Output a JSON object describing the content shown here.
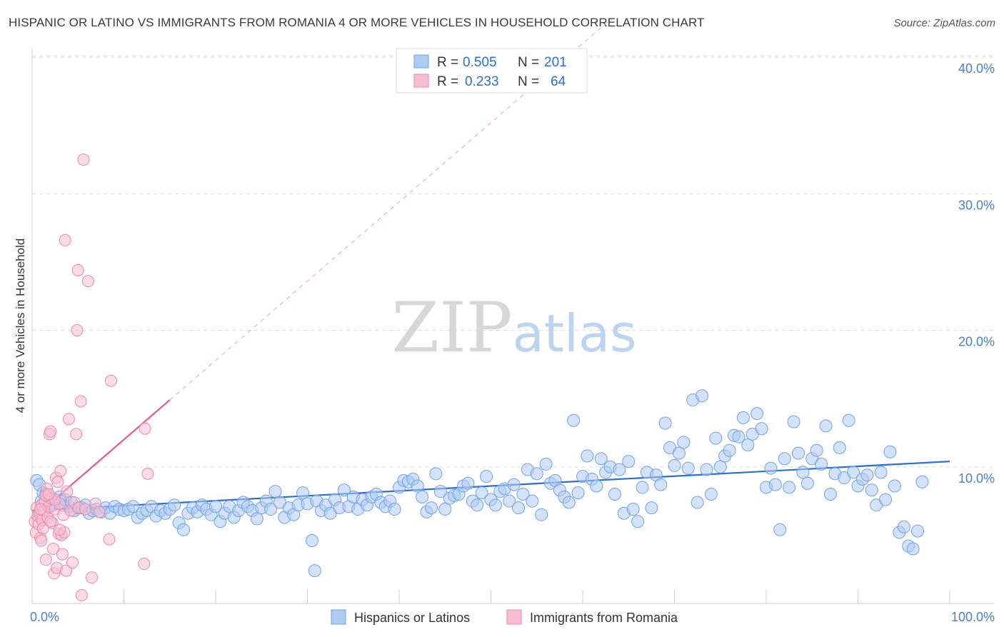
{
  "title": "HISPANIC OR LATINO VS IMMIGRANTS FROM ROMANIA 4 OR MORE VEHICLES IN HOUSEHOLD CORRELATION CHART",
  "source": "Source: ZipAtlas.com",
  "watermark": {
    "zip": "ZIP",
    "atlas": "atlas"
  },
  "chart_data": {
    "type": "scatter",
    "ylabel": "4 or more Vehicles in Household",
    "xlabel": "",
    "xlim": [
      0,
      100
    ],
    "ylim": [
      0,
      40
    ],
    "x_ticks": [
      {
        "value": 0,
        "label": "0.0%"
      },
      {
        "value": 100,
        "label": "100.0%"
      }
    ],
    "y_ticks": [
      {
        "value": 10,
        "label": "10.0%"
      },
      {
        "value": 20,
        "label": "20.0%"
      },
      {
        "value": 30,
        "label": "30.0%"
      },
      {
        "value": 40,
        "label": "40.0%"
      }
    ],
    "grid": "horizontal dashed",
    "legend_placement": "top-center",
    "stats": [
      {
        "r_label": "R =",
        "r_value": "0.505",
        "n_label": "N =",
        "n_value": "201"
      },
      {
        "r_label": "R =",
        "r_value": "0.233",
        "n_label": "N =",
        "n_value": "64"
      }
    ],
    "series": [
      {
        "name": "Hispanics or Latinos",
        "color": "#6fa3e8",
        "fill": "#aecbf2",
        "trend": {
          "x": [
            0,
            100
          ],
          "y": [
            6.8,
            10.4
          ],
          "color": "#2a6fd6"
        },
        "points": [
          [
            0.5,
            9.0
          ],
          [
            0.8,
            8.7
          ],
          [
            1.0,
            7.5
          ],
          [
            1.2,
            8.1
          ],
          [
            1.5,
            8.0
          ],
          [
            1.8,
            7.0
          ],
          [
            2.0,
            7.6
          ],
          [
            2.3,
            7.2
          ],
          [
            2.6,
            7.4
          ],
          [
            3.0,
            7.8
          ],
          [
            3.3,
            7.2
          ],
          [
            3.6,
            7.6
          ],
          [
            4.0,
            7.1
          ],
          [
            4.3,
            7.4
          ],
          [
            4.6,
            6.8
          ],
          [
            5.0,
            7.0
          ],
          [
            5.4,
            7.0
          ],
          [
            5.8,
            7.2
          ],
          [
            6.2,
            6.6
          ],
          [
            6.6,
            6.8
          ],
          [
            7.0,
            6.9
          ],
          [
            7.5,
            6.7
          ],
          [
            8.0,
            7.0
          ],
          [
            8.5,
            6.6
          ],
          [
            9.0,
            7.1
          ],
          [
            9.5,
            6.9
          ],
          [
            10.0,
            6.8
          ],
          [
            10.5,
            6.9
          ],
          [
            11.0,
            7.1
          ],
          [
            11.5,
            6.3
          ],
          [
            12.0,
            6.6
          ],
          [
            12.5,
            6.8
          ],
          [
            13.0,
            7.1
          ],
          [
            13.5,
            6.4
          ],
          [
            14.0,
            6.8
          ],
          [
            14.5,
            6.6
          ],
          [
            15.0,
            6.9
          ],
          [
            15.5,
            7.2
          ],
          [
            16.0,
            5.9
          ],
          [
            16.5,
            5.4
          ],
          [
            17.0,
            6.6
          ],
          [
            17.5,
            7.0
          ],
          [
            18.0,
            6.7
          ],
          [
            18.5,
            7.2
          ],
          [
            19.0,
            6.9
          ],
          [
            19.5,
            6.5
          ],
          [
            20.0,
            7.1
          ],
          [
            20.5,
            6.0
          ],
          [
            21.0,
            6.6
          ],
          [
            21.5,
            7.1
          ],
          [
            22.0,
            6.3
          ],
          [
            22.5,
            6.8
          ],
          [
            23.0,
            7.4
          ],
          [
            23.5,
            7.1
          ],
          [
            24.0,
            6.8
          ],
          [
            24.5,
            6.2
          ],
          [
            25.0,
            7.0
          ],
          [
            25.5,
            7.5
          ],
          [
            26.0,
            6.9
          ],
          [
            26.5,
            8.2
          ],
          [
            27.0,
            7.4
          ],
          [
            27.5,
            6.3
          ],
          [
            28.0,
            7.0
          ],
          [
            28.5,
            6.5
          ],
          [
            29.0,
            7.2
          ],
          [
            29.5,
            8.1
          ],
          [
            30.0,
            7.3
          ],
          [
            30.5,
            4.6
          ],
          [
            30.8,
            2.4
          ],
          [
            31.0,
            7.5
          ],
          [
            31.5,
            6.8
          ],
          [
            32.0,
            7.2
          ],
          [
            32.5,
            6.6
          ],
          [
            33.0,
            7.6
          ],
          [
            33.5,
            7.0
          ],
          [
            34.0,
            8.3
          ],
          [
            34.5,
            7.1
          ],
          [
            35.0,
            7.8
          ],
          [
            35.5,
            6.9
          ],
          [
            36.0,
            7.6
          ],
          [
            36.5,
            7.2
          ],
          [
            37.0,
            7.8
          ],
          [
            37.5,
            8.0
          ],
          [
            38.0,
            7.4
          ],
          [
            38.5,
            7.1
          ],
          [
            39.0,
            7.5
          ],
          [
            39.5,
            6.9
          ],
          [
            40.0,
            8.5
          ],
          [
            40.5,
            9.0
          ],
          [
            41.0,
            8.9
          ],
          [
            41.5,
            9.1
          ],
          [
            42.0,
            8.6
          ],
          [
            42.5,
            7.8
          ],
          [
            43.0,
            6.7
          ],
          [
            43.5,
            7.0
          ],
          [
            44.0,
            9.5
          ],
          [
            44.5,
            8.2
          ],
          [
            45.0,
            6.9
          ],
          [
            45.5,
            7.7
          ],
          [
            46.0,
            7.9
          ],
          [
            46.5,
            8.0
          ],
          [
            47.0,
            8.6
          ],
          [
            47.5,
            8.8
          ],
          [
            48.0,
            7.5
          ],
          [
            48.5,
            7.2
          ],
          [
            49.0,
            8.1
          ],
          [
            49.5,
            9.3
          ],
          [
            50.0,
            7.6
          ],
          [
            50.5,
            7.2
          ],
          [
            51.0,
            8.2
          ],
          [
            51.5,
            8.4
          ],
          [
            52.0,
            7.5
          ],
          [
            52.5,
            8.7
          ],
          [
            53.0,
            7.0
          ],
          [
            53.5,
            8.0
          ],
          [
            54.0,
            9.8
          ],
          [
            54.5,
            7.5
          ],
          [
            55.0,
            9.5
          ],
          [
            55.5,
            6.5
          ],
          [
            56.0,
            10.2
          ],
          [
            56.5,
            8.8
          ],
          [
            57.0,
            9.0
          ],
          [
            57.5,
            8.3
          ],
          [
            58.0,
            7.8
          ],
          [
            58.5,
            7.4
          ],
          [
            59.0,
            13.4
          ],
          [
            59.5,
            8.1
          ],
          [
            60.0,
            9.3
          ],
          [
            60.5,
            10.8
          ],
          [
            61.0,
            9.1
          ],
          [
            61.5,
            8.6
          ],
          [
            62.0,
            10.6
          ],
          [
            62.5,
            9.6
          ],
          [
            63.0,
            10.0
          ],
          [
            63.5,
            8.0
          ],
          [
            64.0,
            9.8
          ],
          [
            64.5,
            6.6
          ],
          [
            65.0,
            10.4
          ],
          [
            65.5,
            6.9
          ],
          [
            66.0,
            6.0
          ],
          [
            66.5,
            8.5
          ],
          [
            67.0,
            9.6
          ],
          [
            67.5,
            7.0
          ],
          [
            68.0,
            9.4
          ],
          [
            68.5,
            8.7
          ],
          [
            69.0,
            13.2
          ],
          [
            69.5,
            11.4
          ],
          [
            70.0,
            10.1
          ],
          [
            70.5,
            11.0
          ],
          [
            71.0,
            11.8
          ],
          [
            71.5,
            9.9
          ],
          [
            72.0,
            14.9
          ],
          [
            72.5,
            7.4
          ],
          [
            73.0,
            15.2
          ],
          [
            73.5,
            9.8
          ],
          [
            74.0,
            8.0
          ],
          [
            74.5,
            12.1
          ],
          [
            75.0,
            10.0
          ],
          [
            75.5,
            10.8
          ],
          [
            76.0,
            11.2
          ],
          [
            76.5,
            12.3
          ],
          [
            77.0,
            12.2
          ],
          [
            77.5,
            13.6
          ],
          [
            78.0,
            11.6
          ],
          [
            78.5,
            12.4
          ],
          [
            79.0,
            13.9
          ],
          [
            79.5,
            12.8
          ],
          [
            80.0,
            8.5
          ],
          [
            80.5,
            9.9
          ],
          [
            81.0,
            8.7
          ],
          [
            81.5,
            5.4
          ],
          [
            82.0,
            10.6
          ],
          [
            82.5,
            8.5
          ],
          [
            83.0,
            13.3
          ],
          [
            83.5,
            11.0
          ],
          [
            84.0,
            9.6
          ],
          [
            84.5,
            8.8
          ],
          [
            85.0,
            10.6
          ],
          [
            85.5,
            11.2
          ],
          [
            86.0,
            10.2
          ],
          [
            86.5,
            13.0
          ],
          [
            87.0,
            8.0
          ],
          [
            87.5,
            9.5
          ],
          [
            88.0,
            11.4
          ],
          [
            88.5,
            9.2
          ],
          [
            89.0,
            13.4
          ],
          [
            89.5,
            9.6
          ],
          [
            90.0,
            8.6
          ],
          [
            90.5,
            9.1
          ],
          [
            91.0,
            9.4
          ],
          [
            91.5,
            8.3
          ],
          [
            92.0,
            7.2
          ],
          [
            92.5,
            9.6
          ],
          [
            93.0,
            7.6
          ],
          [
            93.5,
            11.1
          ],
          [
            94.0,
            8.6
          ],
          [
            94.5,
            5.2
          ],
          [
            95.0,
            5.6
          ],
          [
            95.5,
            4.2
          ],
          [
            96.0,
            4.0
          ],
          [
            96.5,
            5.3
          ],
          [
            97.0,
            8.9
          ]
        ]
      },
      {
        "name": "Immigrants from Romania",
        "color": "#ee87a8",
        "fill": "#f6bfd1",
        "trend": {
          "x": [
            0,
            15
          ],
          "y": [
            6.2,
            14.9
          ],
          "color": "#e8588a",
          "dash_extend_to_x": 63
        },
        "points": [
          [
            0.3,
            6.0
          ],
          [
            0.4,
            5.2
          ],
          [
            0.5,
            7.0
          ],
          [
            0.6,
            6.4
          ],
          [
            0.7,
            5.8
          ],
          [
            0.8,
            6.6
          ],
          [
            0.9,
            4.8
          ],
          [
            1.0,
            7.2
          ],
          [
            1.1,
            6.1
          ],
          [
            1.2,
            5.5
          ],
          [
            1.3,
            6.8
          ],
          [
            1.4,
            7.5
          ],
          [
            1.5,
            3.2
          ],
          [
            1.6,
            8.4
          ],
          [
            1.7,
            6.3
          ],
          [
            1.8,
            7.1
          ],
          [
            1.9,
            12.4
          ],
          [
            2.0,
            12.6
          ],
          [
            2.1,
            7.7
          ],
          [
            2.2,
            5.9
          ],
          [
            2.3,
            4.0
          ],
          [
            2.4,
            2.2
          ],
          [
            2.5,
            6.9
          ],
          [
            2.6,
            9.2
          ],
          [
            2.7,
            2.6
          ],
          [
            2.8,
            8.9
          ],
          [
            2.9,
            5.1
          ],
          [
            3.0,
            7.3
          ],
          [
            3.1,
            9.7
          ],
          [
            3.2,
            5.0
          ],
          [
            3.3,
            3.6
          ],
          [
            3.4,
            6.5
          ],
          [
            3.5,
            5.2
          ],
          [
            3.6,
            26.6
          ],
          [
            3.7,
            2.4
          ],
          [
            3.8,
            8.2
          ],
          [
            4.0,
            13.5
          ],
          [
            4.2,
            6.8
          ],
          [
            4.4,
            3.0
          ],
          [
            4.6,
            7.4
          ],
          [
            4.8,
            12.4
          ],
          [
            4.9,
            20.0
          ],
          [
            5.0,
            24.4
          ],
          [
            5.1,
            7.0
          ],
          [
            5.3,
            14.8
          ],
          [
            5.4,
            0.6
          ],
          [
            5.6,
            32.5
          ],
          [
            5.8,
            6.9
          ],
          [
            6.1,
            23.6
          ],
          [
            6.5,
            1.9
          ],
          [
            6.9,
            7.3
          ],
          [
            7.3,
            6.7
          ],
          [
            8.4,
            4.7
          ],
          [
            8.6,
            16.3
          ],
          [
            12.3,
            12.8
          ],
          [
            12.6,
            9.5
          ],
          [
            12.2,
            2.9
          ],
          [
            1.0,
            4.6
          ],
          [
            1.5,
            7.9
          ],
          [
            2.0,
            6.0
          ],
          [
            2.5,
            7.6
          ],
          [
            3.0,
            5.4
          ],
          [
            1.8,
            8.0
          ],
          [
            0.9,
            6.9
          ]
        ]
      }
    ]
  }
}
